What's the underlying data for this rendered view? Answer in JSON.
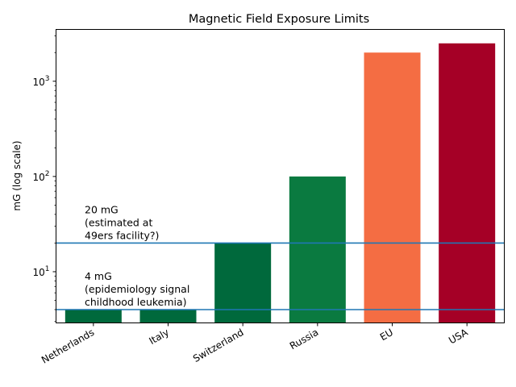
{
  "chart_data": {
    "type": "bar",
    "title": "Magnetic Field Exposure Limits",
    "xlabel": "",
    "ylabel": "mG (log scale)",
    "yscale": "log",
    "ylim": [
      2.9,
      3500
    ],
    "grid": false,
    "categories": [
      "Netherlands",
      "Italy",
      "Switzerland",
      "Russia",
      "EU",
      "USA"
    ],
    "values": [
      4,
      4,
      20,
      100,
      2000,
      2500
    ],
    "bar_colors": [
      "#00693c",
      "#00693c",
      "#00693c",
      "#0a7a40",
      "#f46d43",
      "#a50026"
    ],
    "yticks": [
      {
        "value": 10,
        "base": "10",
        "exp": "1"
      },
      {
        "value": 100,
        "base": "10",
        "exp": "2"
      },
      {
        "value": 1000,
        "base": "10",
        "exp": "3"
      }
    ],
    "reference_lines": [
      {
        "value": 20,
        "color": "#1f77b4",
        "label_lines": [
          "20 mG",
          "(estimated at",
          "49ers facility?)"
        ]
      },
      {
        "value": 4,
        "color": "#1f77b4",
        "label_lines": [
          "4 mG",
          "(epidemiology signal",
          "childhood leukemia)"
        ]
      }
    ]
  }
}
